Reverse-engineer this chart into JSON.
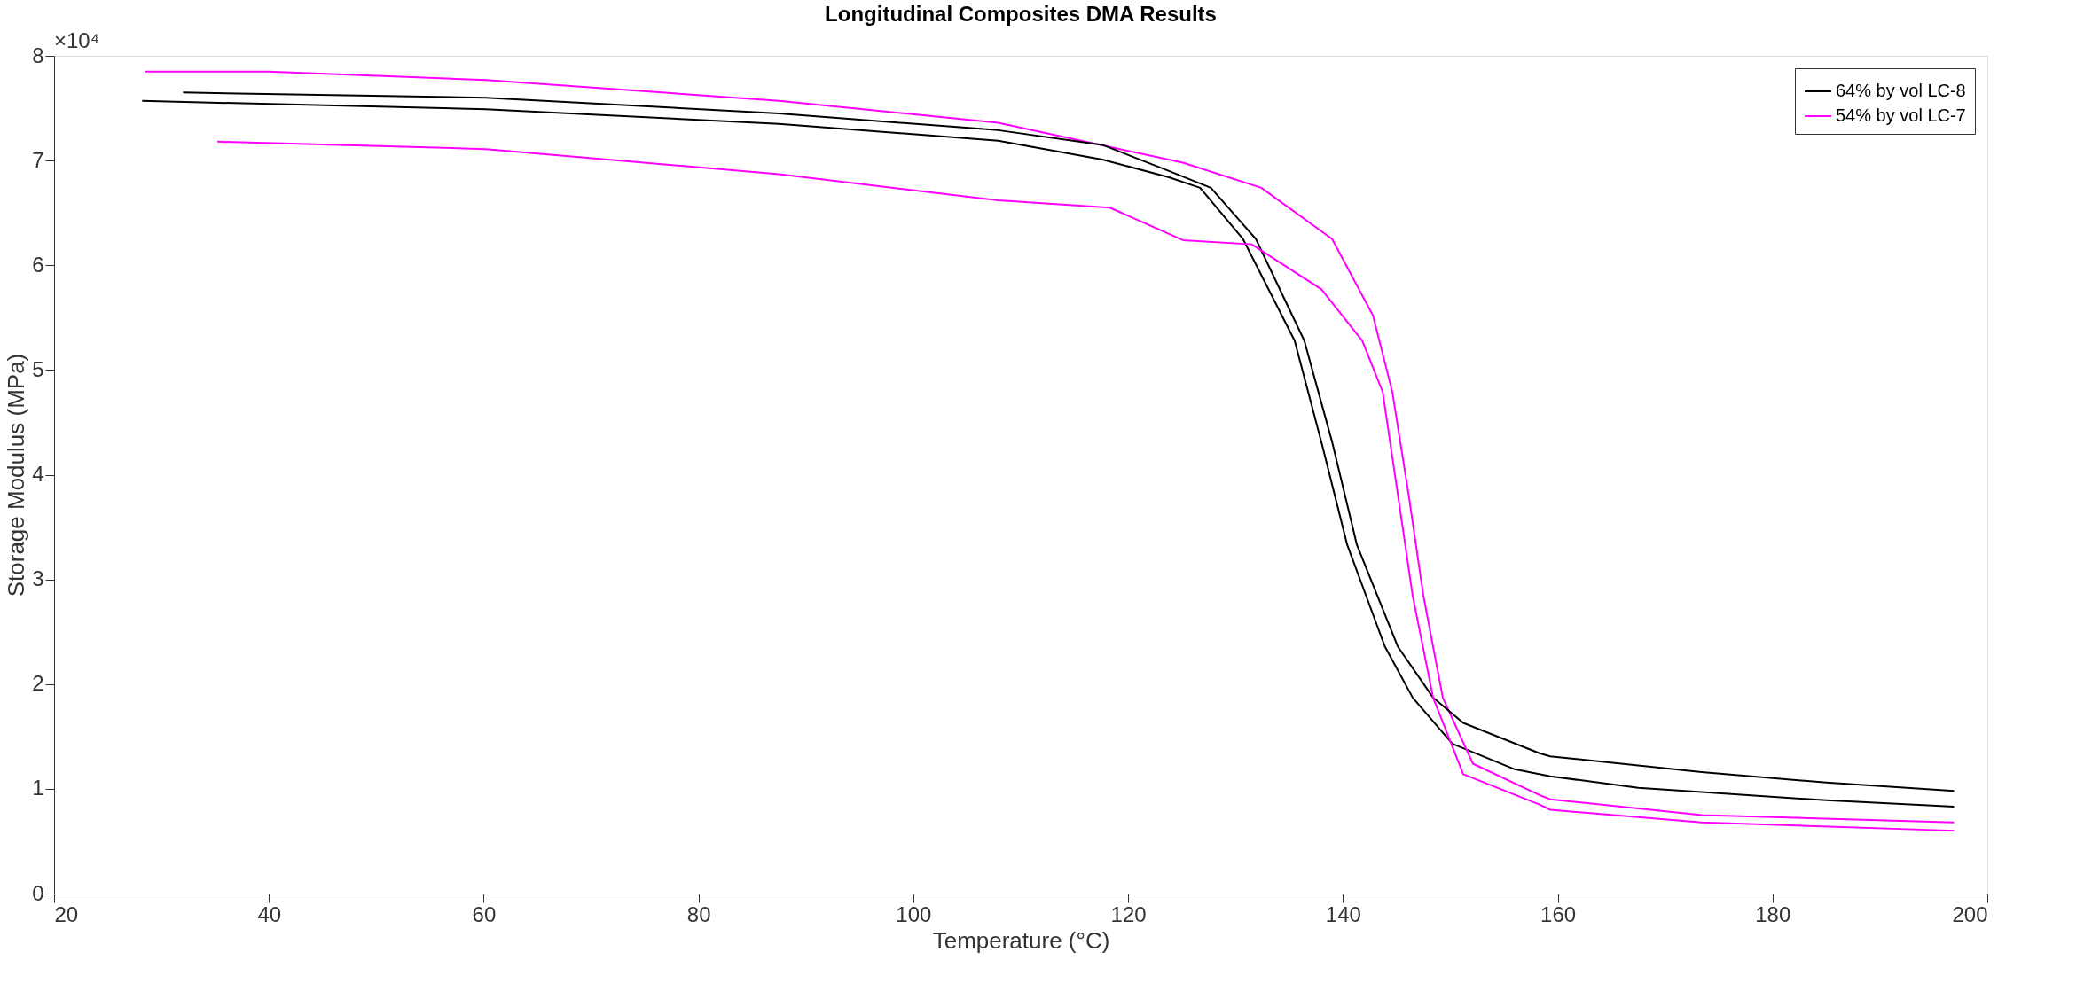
{
  "chart_data": {
    "type": "line",
    "title": "Longitudinal Composites DMA Results",
    "xlabel": "Temperature (°C)",
    "ylabel": "Storage Modulus (MPa)",
    "annotations": [
      "×10⁴"
    ],
    "xlim": [
      20,
      200
    ],
    "xticks": [
      20,
      40,
      60,
      80,
      100,
      120,
      140,
      160,
      180,
      200
    ],
    "ylim": [
      0,
      8
    ],
    "yticks": [
      0,
      1,
      2,
      3,
      4,
      5,
      6,
      7,
      8
    ],
    "grid": false,
    "legend": "top right",
    "marker": "none",
    "line_style": "solid",
    "series": [
      {
        "name": "64% by vol LC-8",
        "color": "#000000",
        "x": [
          28.2,
          60.2,
          87.5,
          107.9,
          117.6,
          123.8,
          126.7,
          130.7,
          135.5,
          138.0,
          140.4,
          143.9,
          146.5,
          150.2,
          155.9,
          159.3,
          167.5,
          173.4,
          185,
          196.9
        ],
        "values": [
          7.57,
          7.49,
          7.35,
          7.19,
          7.01,
          6.84,
          6.74,
          6.25,
          5.28,
          4.31,
          3.33,
          2.36,
          1.87,
          1.43,
          1.19,
          1.12,
          1.01,
          0.97,
          0.89,
          0.83
        ]
      },
      {
        "name": "54% by vol LC-7",
        "color": "#ff00ff",
        "x": [
          28.5,
          39.9,
          60.2,
          87.5,
          107.9,
          118.3,
          125.1,
          132.4,
          139.0,
          142.8,
          144.6,
          146.1,
          147.5,
          149.3,
          152.1,
          158.3,
          159.3,
          173.4,
          196.9
        ],
        "values": [
          7.85,
          7.85,
          7.77,
          7.57,
          7.36,
          7.13,
          6.98,
          6.74,
          6.25,
          5.52,
          4.79,
          3.82,
          2.84,
          1.87,
          1.24,
          0.94,
          0.9,
          0.75,
          0.68
        ]
      },
      {
        "color": "#000000",
        "x": [
          32.0,
          60.2,
          87.5,
          107.9,
          117.6,
          123.8,
          127.7,
          131.9,
          136.4,
          139.0,
          141.3,
          145.1,
          148.4,
          151.2,
          158.3,
          159.3,
          173.4,
          185,
          196.9
        ],
        "values": [
          7.65,
          7.6,
          7.45,
          7.29,
          7.15,
          6.9,
          6.74,
          6.25,
          5.28,
          4.31,
          3.33,
          2.36,
          1.87,
          1.63,
          1.34,
          1.31,
          1.16,
          1.06,
          0.98
        ]
      },
      {
        "color": "#ff00ff",
        "x": [
          35.2,
          60.2,
          87.5,
          107.9,
          118.3,
          125.1,
          131.5,
          138.0,
          141.8,
          143.7,
          145.1,
          146.5,
          148.4,
          151.2,
          158.3,
          159.3,
          173.4,
          196.9
        ],
        "values": [
          7.18,
          7.11,
          6.87,
          6.62,
          6.55,
          6.24,
          6.2,
          5.77,
          5.28,
          4.79,
          3.82,
          2.84,
          1.87,
          1.14,
          0.85,
          0.8,
          0.68,
          0.6
        ]
      }
    ]
  }
}
